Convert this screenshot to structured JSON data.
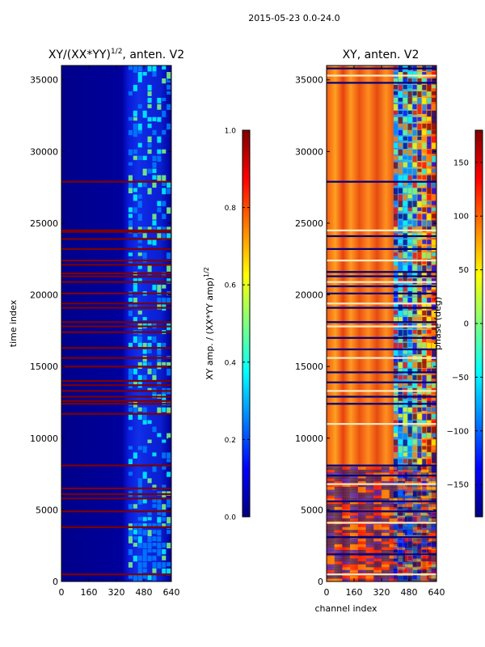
{
  "figure": {
    "suptitle": "2015-05-23 0.0-24.0"
  },
  "colors": {
    "jet": [
      "#00007f",
      "#0000ff",
      "#007fff",
      "#00ffff",
      "#7fff7f",
      "#ffff00",
      "#ff7f00",
      "#ff0000",
      "#7f0000"
    ],
    "background": "#ffffff",
    "frame": "#000000"
  },
  "chart_data": [
    {
      "type": "heatmap",
      "title_main": "XY/(XX*YY)",
      "title_sup": "1/2",
      "title_suffix": ", anten. V2",
      "xlabel": "",
      "ylabel": "time index",
      "xlim": [
        0,
        640
      ],
      "ylim": [
        0,
        36000
      ],
      "xticks": [
        0,
        160,
        320,
        480,
        640
      ],
      "yticks": [
        0,
        5000,
        10000,
        15000,
        20000,
        25000,
        30000,
        35000
      ],
      "colorbar": {
        "label": "XY amp. / (XX*YY amp)",
        "label_sup": "1/2",
        "range": [
          0.0,
          1.0
        ],
        "ticks": [
          0.0,
          0.2,
          0.4,
          0.6,
          0.8,
          1.0
        ],
        "tick_labels": [
          "0.0",
          "0.2",
          "0.4",
          "0.6",
          "0.8",
          "1.0"
        ]
      },
      "flagged_rows": [
        500,
        3800,
        4900,
        5800,
        6100,
        6500,
        8100,
        11700,
        12400,
        12600,
        12900,
        13300,
        13700,
        14000,
        15000,
        15600,
        16300,
        17400,
        17800,
        18100,
        19100,
        19400,
        20100,
        20900,
        21300,
        21500,
        22100,
        22400,
        23200,
        23900,
        24400,
        24500,
        27900
      ],
      "active_band": [
        390,
        640
      ]
    },
    {
      "type": "heatmap",
      "title_main": "XY, anten. V2",
      "xlabel": "channel index",
      "ylabel": "",
      "xlim": [
        0,
        640
      ],
      "ylim": [
        0,
        36000
      ],
      "xticks": [
        0,
        160,
        320,
        480,
        640
      ],
      "yticks": [
        0,
        5000,
        10000,
        15000,
        20000,
        25000,
        30000,
        35000
      ],
      "colorbar": {
        "label": "phase (deg)",
        "range": [
          -180,
          180
        ],
        "ticks": [
          -150,
          -100,
          -50,
          0,
          50,
          100,
          150
        ],
        "tick_labels": [
          "−150",
          "−100",
          "−50",
          "0",
          "50",
          "100",
          "150"
        ]
      },
      "flagged_rows": [
        500,
        1900,
        3100,
        4100,
        4900,
        5600,
        6800,
        7400,
        8100,
        11000,
        12400,
        12900,
        13300,
        13900,
        14600,
        15600,
        16200,
        17000,
        17800,
        18100,
        19100,
        19400,
        20100,
        20600,
        20900,
        21300,
        21600,
        22400,
        23200,
        24100,
        24500,
        27900,
        34800,
        35300,
        35800
      ],
      "active_band": [
        390,
        640
      ]
    }
  ]
}
